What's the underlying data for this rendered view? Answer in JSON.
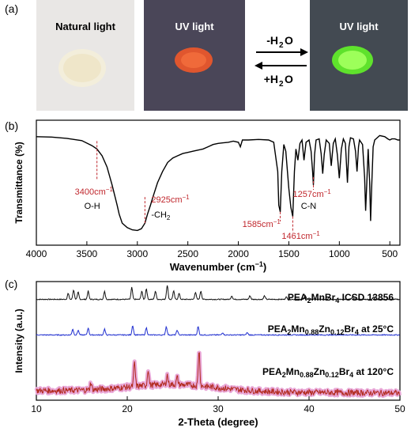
{
  "panel_a": {
    "label": "(a)",
    "photo1_caption": "Natural light",
    "photo2_caption": "UV light",
    "photo3_caption": "UV light",
    "forward_label": "-H",
    "forward_sub": "2",
    "forward_tail": "O",
    "backward_label": "+H",
    "backward_sub": "2",
    "backward_tail": "O",
    "colors": {
      "natural_bg": "#e9e7e5",
      "uv_bg": "#4a4658",
      "sample_white": "#f3eedb",
      "sample_red": "#e0562e",
      "sample_green": "#7dff3a"
    }
  },
  "chart_data": [
    {
      "type": "line",
      "panel": "(b)",
      "ylabel": "Transmittance (%)",
      "xlabel": "Wavenumber (cm",
      "xlabel_sup": "−1",
      "xlabel_tail": ")",
      "xlim": [
        4000,
        400
      ],
      "ylim": [
        0,
        100
      ],
      "ticks": [
        4000,
        3500,
        3000,
        2500,
        2000,
        1500,
        1000,
        500
      ],
      "tick_labels": [
        "4000",
        "3500",
        "3000",
        "2500",
        "2000",
        "1500",
        "1000",
        "500"
      ],
      "series": [
        {
          "points": [
            [
              4000,
              91
            ],
            [
              3850,
              90.6
            ],
            [
              3700,
              89.5
            ],
            [
              3550,
              87.5
            ],
            [
              3450,
              83
            ],
            [
              3400,
              80
            ],
            [
              3350,
              74
            ],
            [
              3300,
              64
            ],
            [
              3250,
              48
            ],
            [
              3200,
              30
            ],
            [
              3180,
              22
            ],
            [
              3150,
              14
            ],
            [
              3100,
              10
            ],
            [
              3050,
              8
            ],
            [
              3000,
              7.5
            ],
            [
              2960,
              9
            ],
            [
              2925,
              14
            ],
            [
              2900,
              22
            ],
            [
              2870,
              30
            ],
            [
              2850,
              36
            ],
            [
              2800,
              50
            ],
            [
              2750,
              60
            ],
            [
              2700,
              68
            ],
            [
              2650,
              72
            ],
            [
              2600,
              74
            ],
            [
              2550,
              76
            ],
            [
              2500,
              77
            ],
            [
              2450,
              78
            ],
            [
              2400,
              79
            ],
            [
              2350,
              80
            ],
            [
              2300,
              82
            ],
            [
              2250,
              84
            ],
            [
              2200,
              85
            ],
            [
              2150,
              85.5
            ],
            [
              2100,
              86
            ],
            [
              2050,
              87
            ],
            [
              2000,
              86
            ],
            [
              1980,
              82
            ],
            [
              1960,
              88
            ],
            [
              1900,
              88
            ],
            [
              1800,
              88.5
            ],
            [
              1700,
              88
            ],
            [
              1650,
              86
            ],
            [
              1610,
              60
            ],
            [
              1600,
              30
            ],
            [
              1585,
              24
            ],
            [
              1570,
              60
            ],
            [
              1550,
              84
            ],
            [
              1530,
              78
            ],
            [
              1500,
              45
            ],
            [
              1480,
              28
            ],
            [
              1461,
              20
            ],
            [
              1445,
              60
            ],
            [
              1430,
              80
            ],
            [
              1410,
              70
            ],
            [
              1390,
              85
            ],
            [
              1370,
              88
            ],
            [
              1350,
              70
            ],
            [
              1330,
              86
            ],
            [
              1300,
              88
            ],
            [
              1280,
              78
            ],
            [
              1265,
              60
            ],
            [
              1257,
              48
            ],
            [
              1245,
              75
            ],
            [
              1230,
              88
            ],
            [
              1200,
              89
            ],
            [
              1180,
              76
            ],
            [
              1165,
              58
            ],
            [
              1150,
              75
            ],
            [
              1130,
              88
            ],
            [
              1100,
              85
            ],
            [
              1080,
              65
            ],
            [
              1060,
              85
            ],
            [
              1040,
              89
            ],
            [
              1020,
              75
            ],
            [
              1000,
              54
            ],
            [
              980,
              80
            ],
            [
              960,
              89
            ],
            [
              940,
              85
            ],
            [
              920,
              50
            ],
            [
              905,
              82
            ],
            [
              890,
              90
            ],
            [
              860,
              89
            ],
            [
              840,
              78
            ],
            [
              825,
              60
            ],
            [
              810,
              82
            ],
            [
              800,
              88
            ],
            [
              770,
              84
            ],
            [
              750,
              55
            ],
            [
              740,
              25
            ],
            [
              728,
              50
            ],
            [
              715,
              80
            ],
            [
              700,
              50
            ],
            [
              690,
              16
            ],
            [
              680,
              45
            ],
            [
              665,
              82
            ],
            [
              650,
              88
            ],
            [
              600,
              92
            ],
            [
              550,
              91
            ],
            [
              520,
              89
            ],
            [
              500,
              88
            ],
            [
              480,
              89
            ],
            [
              450,
              89
            ],
            [
              420,
              88
            ],
            [
              400,
              88
            ]
          ]
        }
      ],
      "annotations": [
        {
          "text": "3400cm",
          "sup": "−1",
          "x": 3400,
          "y": 80,
          "note": "O-H"
        },
        {
          "text": "2925cm",
          "sup": "−1",
          "x": 2925,
          "y": 14,
          "note": "-CH",
          "note_sub": "2"
        },
        {
          "text": "1585cm",
          "sup": "−1",
          "x": 1585,
          "y": 24
        },
        {
          "text": "1461cm",
          "sup": "−1",
          "x": 1461,
          "y": 20
        },
        {
          "text": "1257cm",
          "sup": "−1",
          "x": 1257,
          "y": 48,
          "note": "C-N"
        }
      ]
    },
    {
      "type": "line",
      "panel": "(c)",
      "ylabel": "Intensity (a.u.)",
      "xlabel": "2-Theta (degree)",
      "xlim": [
        10,
        50
      ],
      "ticks": [
        10,
        20,
        30,
        40,
        50
      ],
      "tick_labels": [
        "10",
        "20",
        "30",
        "40",
        "50"
      ],
      "series": [
        {
          "name_main": "PEA",
          "name_parts": [
            [
              "2",
              "sub"
            ],
            [
              "MnBr",
              ""
            ],
            [
              "4",
              "sub"
            ],
            [
              " ICSD 13856",
              ""
            ]
          ],
          "color": "#111111",
          "baseline": 0.85,
          "peaks": [
            [
              13.5,
              0.05
            ],
            [
              14.1,
              0.08
            ],
            [
              14.6,
              0.06
            ],
            [
              15.7,
              0.07
            ],
            [
              17.5,
              0.07
            ],
            [
              20.5,
              0.1
            ],
            [
              21.6,
              0.07
            ],
            [
              22.1,
              0.09
            ],
            [
              23.1,
              0.07
            ],
            [
              24.4,
              0.12
            ],
            [
              25.1,
              0.07
            ],
            [
              25.7,
              0.05
            ],
            [
              27.5,
              0.06
            ],
            [
              28.1,
              0.07
            ],
            [
              31.5,
              0.03
            ],
            [
              33.5,
              0.03
            ],
            [
              35.1,
              0.03
            ],
            [
              37.5,
              0.02
            ],
            [
              39.6,
              0.03
            ],
            [
              42.2,
              0.02
            ],
            [
              44.8,
              0.02
            ],
            [
              47.1,
              0.02
            ]
          ]
        },
        {
          "name_main": "PEA",
          "name_parts": [
            [
              "2",
              "sub"
            ],
            [
              "Mn",
              ""
            ],
            [
              "0.88",
              "sub"
            ],
            [
              "Zn",
              ""
            ],
            [
              "0.12",
              "sub"
            ],
            [
              "Br",
              ""
            ],
            [
              "4",
              "sub"
            ],
            [
              " at 25°C",
              ""
            ]
          ],
          "color": "#1f2ecf",
          "baseline": 0.55,
          "peaks": [
            [
              14,
              0.05
            ],
            [
              14.6,
              0.04
            ],
            [
              15.7,
              0.06
            ],
            [
              17.5,
              0.05
            ],
            [
              20.6,
              0.08
            ],
            [
              22.1,
              0.06
            ],
            [
              24.3,
              0.07
            ],
            [
              25.5,
              0.04
            ],
            [
              27.8,
              0.07
            ],
            [
              30.5,
              0.02
            ],
            [
              33.2,
              0.02
            ]
          ]
        },
        {
          "name_main": "PEA",
          "name_parts": [
            [
              "2",
              "sub"
            ],
            [
              "Mn",
              ""
            ],
            [
              "0.88",
              "sub"
            ],
            [
              "Zn",
              ""
            ],
            [
              "0.12",
              "sub"
            ],
            [
              "Br",
              ""
            ],
            [
              "4",
              "sub"
            ],
            [
              " at 120°C",
              ""
            ]
          ],
          "color": "#b22a1e",
          "band": "#e9a8d8",
          "baseline": 0.08,
          "peaks": [
            [
              16,
              0.06
            ],
            [
              20.8,
              0.2
            ],
            [
              22.3,
              0.14
            ],
            [
              24.4,
              0.08
            ],
            [
              25.5,
              0.06
            ],
            [
              27.9,
              0.3
            ]
          ]
        }
      ]
    }
  ]
}
